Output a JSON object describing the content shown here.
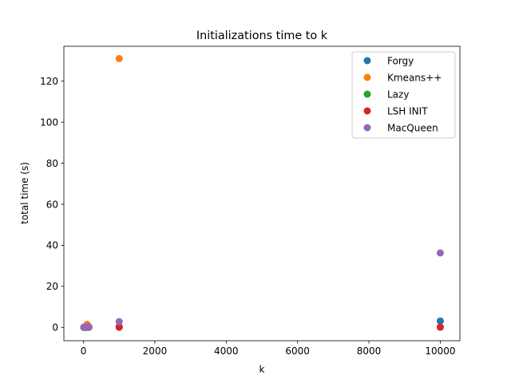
{
  "chart_data": {
    "type": "scatter",
    "title": "Initializations time to k",
    "xlabel": "k",
    "ylabel": "total time (s)",
    "xlim": [
      -550,
      10550
    ],
    "ylim": [
      -6.5,
      137
    ],
    "xticks": [
      0,
      2000,
      4000,
      6000,
      8000,
      10000
    ],
    "xtick_labels": [
      "0",
      "2000",
      "4000",
      "6000",
      "8000",
      "10000"
    ],
    "yticks": [
      0,
      20,
      40,
      60,
      80,
      100,
      120
    ],
    "ytick_labels": [
      "0",
      "20",
      "40",
      "60",
      "80",
      "100",
      "120"
    ],
    "grid": false,
    "legend_position": "top-right",
    "series": [
      {
        "name": "Forgy",
        "color": "#1f77b4",
        "points": [
          [
            10,
            0.02
          ],
          [
            50,
            0.05
          ],
          [
            100,
            0.08
          ],
          [
            150,
            0.1
          ],
          [
            1000,
            0.3
          ],
          [
            10000,
            3.1
          ]
        ]
      },
      {
        "name": "Kmeans++",
        "color": "#ff7f0e",
        "points": [
          [
            10,
            0.05
          ],
          [
            50,
            0.4
          ],
          [
            100,
            1.5
          ],
          [
            150,
            0.4
          ],
          [
            1000,
            131
          ]
        ]
      },
      {
        "name": "Lazy",
        "color": "#2ca02c",
        "points": [
          [
            10,
            0.01
          ],
          [
            50,
            0.02
          ],
          [
            100,
            0.03
          ],
          [
            150,
            0.03
          ],
          [
            1000,
            0.05
          ],
          [
            10000,
            0.1
          ]
        ]
      },
      {
        "name": "LSH INIT",
        "color": "#d62728",
        "points": [
          [
            10,
            0.02
          ],
          [
            50,
            0.03
          ],
          [
            100,
            0.04
          ],
          [
            150,
            0.05
          ],
          [
            1000,
            0.1
          ],
          [
            10000,
            0.1
          ]
        ]
      },
      {
        "name": "MacQueen",
        "color": "#9467bd",
        "points": [
          [
            10,
            0.05
          ],
          [
            50,
            0.1
          ],
          [
            100,
            0.2
          ],
          [
            150,
            0.2
          ],
          [
            1000,
            2.8
          ],
          [
            10000,
            36.3
          ]
        ]
      }
    ]
  }
}
